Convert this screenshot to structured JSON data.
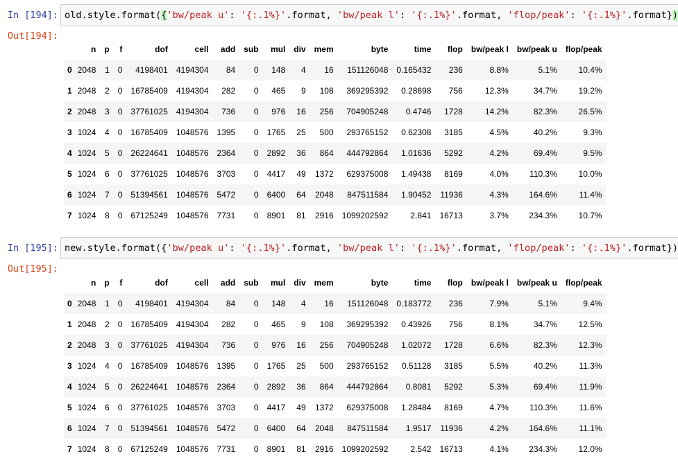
{
  "cells": [
    {
      "in_prompt": "In [194]:",
      "out_prompt": "Out[194]:",
      "code": {
        "prefix": "old.style.format",
        "open_paren": "(",
        "body_open": "{",
        "k1": "'bw/peak u'",
        "sep1": ": ",
        "v1": "'{:.1%}'",
        "t1": ".format, ",
        "k2": "'bw/peak l'",
        "sep2": ": ",
        "v2": "'{:.1%}'",
        "t2": ".format, ",
        "k3": "'flop/peak'",
        "sep3": ": ",
        "v3": "'{:.1%}'",
        "t3": ".format}",
        "close_paren": ")"
      },
      "columns": [
        "",
        "n",
        "p",
        "f",
        "dof",
        "cell",
        "add",
        "sub",
        "mul",
        "div",
        "mem",
        "byte",
        "time",
        "flop",
        "bw/peak l",
        "bw/peak u",
        "flop/peak"
      ],
      "rows": [
        [
          "0",
          "2048",
          "1",
          "0",
          "4198401",
          "4194304",
          "84",
          "0",
          "148",
          "4",
          "16",
          "151126048",
          "0.165432",
          "236",
          "8.8%",
          "5.1%",
          "10.4%"
        ],
        [
          "1",
          "2048",
          "2",
          "0",
          "16785409",
          "4194304",
          "282",
          "0",
          "465",
          "9",
          "108",
          "369295392",
          "0.28698",
          "756",
          "12.3%",
          "34.7%",
          "19.2%"
        ],
        [
          "2",
          "2048",
          "3",
          "0",
          "37761025",
          "4194304",
          "736",
          "0",
          "976",
          "16",
          "256",
          "704905248",
          "0.4746",
          "1728",
          "14.2%",
          "82.3%",
          "26.5%"
        ],
        [
          "3",
          "1024",
          "4",
          "0",
          "16785409",
          "1048576",
          "1395",
          "0",
          "1765",
          "25",
          "500",
          "293765152",
          "0.62308",
          "3185",
          "4.5%",
          "40.2%",
          "9.3%"
        ],
        [
          "4",
          "1024",
          "5",
          "0",
          "26224641",
          "1048576",
          "2364",
          "0",
          "2892",
          "36",
          "864",
          "444792864",
          "1.01636",
          "5292",
          "4.2%",
          "69.4%",
          "9.5%"
        ],
        [
          "5",
          "1024",
          "6",
          "0",
          "37761025",
          "1048576",
          "3703",
          "0",
          "4417",
          "49",
          "1372",
          "629375008",
          "1.49438",
          "8169",
          "4.0%",
          "110.3%",
          "10.0%"
        ],
        [
          "6",
          "1024",
          "7",
          "0",
          "51394561",
          "1048576",
          "5472",
          "0",
          "6400",
          "64",
          "2048",
          "847511584",
          "1.90452",
          "11936",
          "4.3%",
          "164.6%",
          "11.4%"
        ],
        [
          "7",
          "1024",
          "8",
          "0",
          "67125249",
          "1048576",
          "7731",
          "0",
          "8901",
          "81",
          "2916",
          "1099202592",
          "2.841",
          "16713",
          "3.7%",
          "234.3%",
          "10.7%"
        ]
      ]
    },
    {
      "in_prompt": "In [195]:",
      "out_prompt": "Out[195]:",
      "code": {
        "prefix": "new.style.format",
        "open_paren": "(",
        "body_open": "{",
        "k1": "'bw/peak u'",
        "sep1": ": ",
        "v1": "'{:.1%}'",
        "t1": ".format, ",
        "k2": "'bw/peak l'",
        "sep2": ": ",
        "v2": "'{:.1%}'",
        "t2": ".format, ",
        "k3": "'flop/peak'",
        "sep3": ": ",
        "v3": "'{:.1%}'",
        "t3": ".format}",
        "close_paren": ")"
      },
      "columns": [
        "",
        "n",
        "p",
        "f",
        "dof",
        "cell",
        "add",
        "sub",
        "mul",
        "div",
        "mem",
        "byte",
        "time",
        "flop",
        "bw/peak l",
        "bw/peak u",
        "flop/peak"
      ],
      "rows": [
        [
          "0",
          "2048",
          "1",
          "0",
          "4198401",
          "4194304",
          "84",
          "0",
          "148",
          "4",
          "16",
          "151126048",
          "0.183772",
          "236",
          "7.9%",
          "5.1%",
          "9.4%"
        ],
        [
          "1",
          "2048",
          "2",
          "0",
          "16785409",
          "4194304",
          "282",
          "0",
          "465",
          "9",
          "108",
          "369295392",
          "0.43926",
          "756",
          "8.1%",
          "34.7%",
          "12.5%"
        ],
        [
          "2",
          "2048",
          "3",
          "0",
          "37761025",
          "4194304",
          "736",
          "0",
          "976",
          "16",
          "256",
          "704905248",
          "1.02072",
          "1728",
          "6.6%",
          "82.3%",
          "12.3%"
        ],
        [
          "3",
          "1024",
          "4",
          "0",
          "16785409",
          "1048576",
          "1395",
          "0",
          "1765",
          "25",
          "500",
          "293765152",
          "0.51128",
          "3185",
          "5.5%",
          "40.2%",
          "11.3%"
        ],
        [
          "4",
          "1024",
          "5",
          "0",
          "26224641",
          "1048576",
          "2364",
          "0",
          "2892",
          "36",
          "864",
          "444792864",
          "0.8081",
          "5292",
          "5.3%",
          "69.4%",
          "11.9%"
        ],
        [
          "5",
          "1024",
          "6",
          "0",
          "37761025",
          "1048576",
          "3703",
          "0",
          "4417",
          "49",
          "1372",
          "629375008",
          "1.28484",
          "8169",
          "4.7%",
          "110.3%",
          "11.6%"
        ],
        [
          "6",
          "1024",
          "7",
          "0",
          "51394561",
          "1048576",
          "5472",
          "0",
          "6400",
          "64",
          "2048",
          "847511584",
          "1.9517",
          "11936",
          "4.2%",
          "164.6%",
          "11.1%"
        ],
        [
          "7",
          "1024",
          "8",
          "0",
          "67125249",
          "1048576",
          "7731",
          "0",
          "8901",
          "81",
          "2916",
          "1099202592",
          "2.542",
          "16713",
          "4.1%",
          "234.3%",
          "12.0%"
        ]
      ]
    }
  ]
}
